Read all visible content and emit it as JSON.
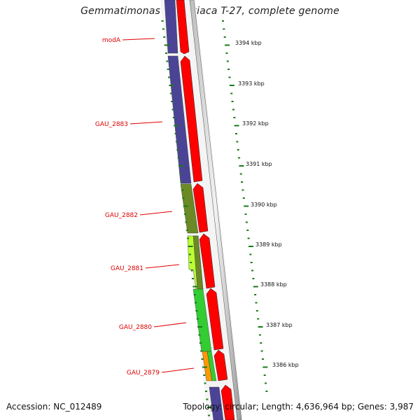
{
  "title": "Gemmatimonas aurantiaca T-27, complete genome",
  "footer": {
    "accession": "Accession: NC_012489",
    "summary": "Topology: circular; Length: 4,636,964 bp; Genes: 3,987"
  },
  "colors": {
    "forward_strand": "#ff0000",
    "gene_label": "#dd0000",
    "tick": "#1a7a1a",
    "backbone": "#888888"
  },
  "kbp_labels": [
    "3394 kbp",
    "3393 kbp",
    "3392 kbp",
    "3391 kbp",
    "3390 kbp",
    "3389 kbp",
    "3388 kbp",
    "3387 kbp",
    "3386 kbp"
  ],
  "genes": [
    {
      "name": "modA",
      "color": "#4b4496"
    },
    {
      "name": "GAU_2883",
      "color": "#4b4496"
    },
    {
      "name": "GAU_2882",
      "color": "#6b8a25"
    },
    {
      "name": "GAU_2881",
      "color": "#bbff33"
    },
    {
      "name": "GAU_2880",
      "color": "#33cc33"
    },
    {
      "name": "GAU_2879",
      "color": "#ff9900"
    }
  ]
}
